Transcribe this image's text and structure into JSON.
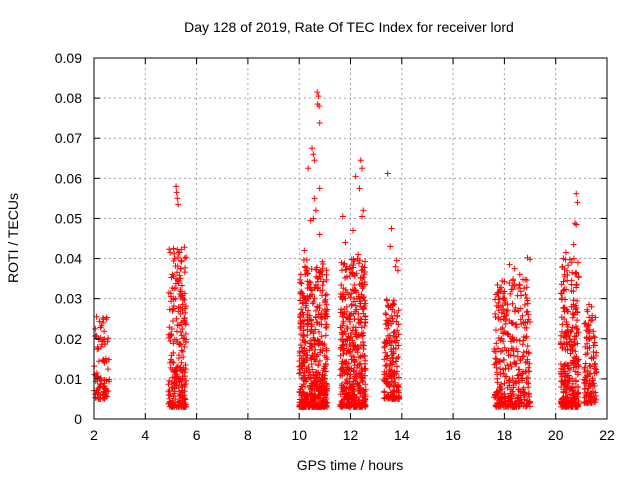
{
  "chart_data": {
    "type": "scatter",
    "title": "Day 128 of 2019, Rate Of TEC Index for receiver lord",
    "xlabel": "GPS time / hours",
    "ylabel": "ROTI / TECUs",
    "xlim": [
      2,
      22
    ],
    "ylim": [
      0,
      0.09
    ],
    "xticks": [
      "2",
      "4",
      "6",
      "8",
      "10",
      "12",
      "14",
      "16",
      "18",
      "20",
      "22"
    ],
    "yticks": [
      "0",
      "0.01",
      "0.02",
      "0.03",
      "0.04",
      "0.05",
      "0.06",
      "0.07",
      "0.08",
      "0.09"
    ],
    "grid": true,
    "marker": "plus",
    "color": "#ff0000",
    "clusters": [
      {
        "x_range": [
          2.0,
          2.6
        ],
        "y_range": [
          0.005,
          0.025
        ],
        "count": 90
      },
      {
        "x_range": [
          4.9,
          5.6
        ],
        "y_range": [
          0.003,
          0.043
        ],
        "count": 260
      },
      {
        "x_range": [
          10.0,
          11.1
        ],
        "y_range": [
          0.003,
          0.04
        ],
        "count": 520
      },
      {
        "x_range": [
          11.6,
          12.6
        ],
        "y_range": [
          0.003,
          0.04
        ],
        "count": 440
      },
      {
        "x_range": [
          13.3,
          13.9
        ],
        "y_range": [
          0.005,
          0.03
        ],
        "count": 180
      },
      {
        "x_range": [
          17.6,
          19.0
        ],
        "y_range": [
          0.003,
          0.035
        ],
        "count": 360
      },
      {
        "x_range": [
          20.2,
          20.9
        ],
        "y_range": [
          0.003,
          0.04
        ],
        "count": 300
      },
      {
        "x_range": [
          21.1,
          21.6
        ],
        "y_range": [
          0.004,
          0.028
        ],
        "count": 120
      }
    ],
    "outliers": [
      {
        "x": 2.1,
        "y": 0.0255
      },
      {
        "x": 2.35,
        "y": 0.0252
      },
      {
        "x": 2.5,
        "y": 0.0253
      },
      {
        "x": 5.2,
        "y": 0.058
      },
      {
        "x": 5.22,
        "y": 0.0565
      },
      {
        "x": 5.25,
        "y": 0.055
      },
      {
        "x": 5.28,
        "y": 0.0535
      },
      {
        "x": 5.1,
        "y": 0.0425
      },
      {
        "x": 5.3,
        "y": 0.0415
      },
      {
        "x": 10.7,
        "y": 0.0815
      },
      {
        "x": 10.75,
        "y": 0.0805
      },
      {
        "x": 10.72,
        "y": 0.0785
      },
      {
        "x": 10.78,
        "y": 0.078
      },
      {
        "x": 10.8,
        "y": 0.0738
      },
      {
        "x": 10.5,
        "y": 0.0675
      },
      {
        "x": 10.55,
        "y": 0.066
      },
      {
        "x": 10.6,
        "y": 0.0645
      },
      {
        "x": 10.35,
        "y": 0.0625
      },
      {
        "x": 10.8,
        "y": 0.0575
      },
      {
        "x": 10.6,
        "y": 0.055
      },
      {
        "x": 10.65,
        "y": 0.052
      },
      {
        "x": 10.55,
        "y": 0.05
      },
      {
        "x": 10.45,
        "y": 0.0495
      },
      {
        "x": 10.8,
        "y": 0.046
      },
      {
        "x": 10.2,
        "y": 0.042
      },
      {
        "x": 12.4,
        "y": 0.0645
      },
      {
        "x": 12.45,
        "y": 0.0625
      },
      {
        "x": 12.2,
        "y": 0.0605
      },
      {
        "x": 12.35,
        "y": 0.0575
      },
      {
        "x": 12.5,
        "y": 0.052
      },
      {
        "x": 12.45,
        "y": 0.0505
      },
      {
        "x": 11.7,
        "y": 0.0505
      },
      {
        "x": 12.1,
        "y": 0.047
      },
      {
        "x": 11.8,
        "y": 0.044
      },
      {
        "x": 12.3,
        "y": 0.041
      },
      {
        "x": 13.45,
        "y": 0.0612
      },
      {
        "x": 13.6,
        "y": 0.0475
      },
      {
        "x": 13.55,
        "y": 0.043
      },
      {
        "x": 13.8,
        "y": 0.0395
      },
      {
        "x": 13.75,
        "y": 0.038
      },
      {
        "x": 13.85,
        "y": 0.037
      },
      {
        "x": 18.2,
        "y": 0.0385
      },
      {
        "x": 18.4,
        "y": 0.0375
      },
      {
        "x": 18.9,
        "y": 0.0402
      },
      {
        "x": 19.0,
        "y": 0.0398
      },
      {
        "x": 18.6,
        "y": 0.036
      },
      {
        "x": 20.8,
        "y": 0.0562
      },
      {
        "x": 20.85,
        "y": 0.054
      },
      {
        "x": 20.75,
        "y": 0.0488
      },
      {
        "x": 20.8,
        "y": 0.0485
      },
      {
        "x": 20.7,
        "y": 0.0435
      },
      {
        "x": 20.4,
        "y": 0.0415
      },
      {
        "x": 20.3,
        "y": 0.04
      },
      {
        "x": 21.3,
        "y": 0.0285
      },
      {
        "x": 21.4,
        "y": 0.028
      }
    ]
  }
}
